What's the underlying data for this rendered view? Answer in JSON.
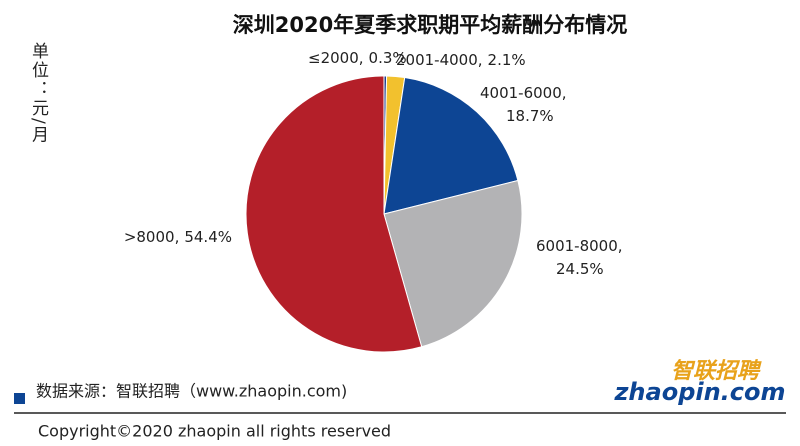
{
  "chart_data": {
    "type": "pie",
    "title": "深圳2020年夏季求职期平均薪酬分布情况",
    "unit_label": "单位：元/月",
    "categories": [
      "≤2000",
      "2001-4000",
      "4001-6000",
      "6001-8000",
      ">8000"
    ],
    "values": [
      0.3,
      2.1,
      18.7,
      24.5,
      54.4
    ],
    "value_labels": [
      "0.3%",
      "2.1%",
      "18.7%",
      "24.5%",
      "54.4%"
    ],
    "label_separator": ",",
    "colors": [
      "#1f3f8f",
      "#f2c12e",
      "#0d4594",
      "#b3b3b5",
      "#b41f29"
    ],
    "source": "数据来源：智联招聘（www.zhaopin.com)",
    "logo_cn": "智联招聘",
    "logo_en": "zhaopin.com",
    "copyright": "Copyright©2020 zhaopin all rights reserved"
  }
}
